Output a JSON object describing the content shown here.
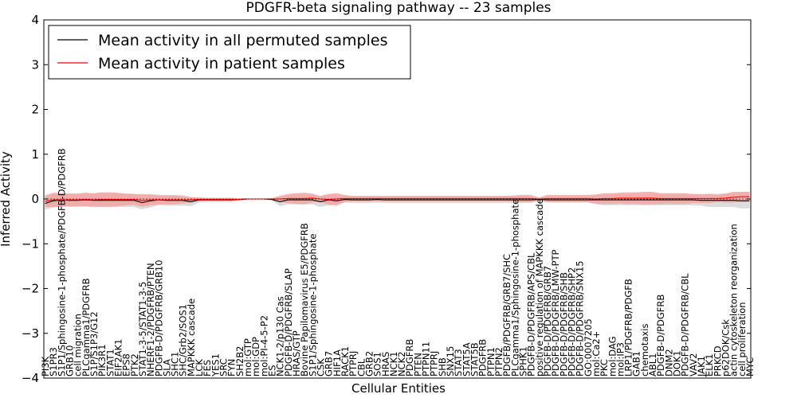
{
  "chart_data": {
    "type": "line",
    "title": "PDGFR-beta signaling pathway -- 23 samples",
    "xlabel": "Cellular Entities",
    "ylabel": "Inferred Activity",
    "ylim": [
      -4,
      4
    ],
    "yticks": [
      -4,
      -3,
      -2,
      -1,
      0,
      1,
      2,
      3,
      4
    ],
    "grid": false,
    "legend_position": "top-left",
    "categories": [
      "PI3K",
      "S1PR3",
      "S1P1/Sphingosine-1-phosphate/PDGFB-D/PDGFRB",
      "GRB10",
      "cell migration",
      "PLCgamma1/PDGFRB",
      "S1P/S1P3/G12",
      "PIK3R1",
      "STAT1",
      "EIF2AK1",
      "EPS8",
      "PTK2",
      "STAT1-3-5/STAT1-3-5",
      "NHERF1-2/PDGFRB/PTEN",
      "PDGFB-D/PDGFRB/GRB10",
      "SLA",
      "SHC1",
      "SHC/Grb2/SOS1",
      "MAPKKK cascade",
      "LCK",
      "FES",
      "YES1",
      "SRC",
      "FYN",
      "SH2B2",
      "mol:GTP",
      "mol:GDP",
      "mol:PI-4-5-P2",
      "ES",
      "NCK1-2/p130 Cas",
      "PDGFB-D/PDGFRB/SLAP",
      "HRAS/GTP",
      "Bovine Papilomavirus E5/PDGFRB",
      "S1P1/Sphingosine-1-phosphate",
      "CSK",
      "GRB7",
      "HIF1A",
      "RACK1",
      "PTPRJ",
      "CBL",
      "GRB2",
      "SOS1",
      "HRAS",
      "NCK1",
      "NCK2",
      "PDGFRB",
      "PTEN",
      "PTPN11",
      "PTPRJ",
      "SHB",
      "SNX15",
      "STAT3",
      "STAT5A",
      "STAT5B",
      "PDGFRB",
      "PTPN1",
      "PTPN2",
      "PDGFB/PDGFRB/GRB7/SHC",
      "PLCgamma1/Sphingosine-1-phosphate",
      "SPHK1",
      "PDGFB-D/PDGFRB/APS/CBL",
      "positive regulation of MAPKKK cascade",
      "PDGFB-D/PDGFRB/GRB7",
      "PDGFB-D/PDGFRB/LMW-PTP",
      "PDGFB-D/PDGFRB/SHB",
      "PDGFB-D/PDGFRB/SHP2",
      "PDGFB-D/PDGFRB/SNX15",
      "GO:0007205",
      "mol:Ca2+",
      "PKC",
      "mol:DAG",
      "mol:IP3",
      "LRP1/PDGFRB/PDGFB",
      "GAB1",
      "chemotaxis",
      "ABL1",
      "PDGFB-D/PDGFRB",
      "DNM2",
      "DOK1",
      "PDGFB-D/PDGFRB/CBL",
      "VAV2",
      "JAK1",
      "ELK1",
      "PRKCD",
      "p62DOK/Csk",
      "actin cytoskeleton reorganization",
      "cell proliferation",
      "MYC"
    ],
    "series": [
      {
        "name": "Mean activity in all permuted samples",
        "color": "#000000",
        "band_color": "#d8d8d8",
        "values": [
          -0.1,
          -0.04,
          -0.02,
          -0.03,
          -0.03,
          -0.02,
          -0.03,
          -0.03,
          -0.03,
          -0.03,
          -0.03,
          -0.03,
          -0.08,
          -0.04,
          -0.02,
          -0.03,
          -0.03,
          -0.03,
          -0.06,
          -0.02,
          -0.02,
          -0.02,
          -0.02,
          -0.02,
          -0.01,
          0.0,
          0.0,
          0.0,
          -0.01,
          -0.06,
          -0.02,
          -0.02,
          -0.02,
          -0.02,
          -0.06,
          -0.02,
          -0.04,
          -0.01,
          -0.02,
          -0.02,
          -0.02,
          -0.01,
          -0.02,
          -0.02,
          -0.02,
          -0.02,
          -0.02,
          -0.02,
          -0.02,
          -0.02,
          -0.02,
          -0.02,
          -0.02,
          -0.02,
          -0.02,
          -0.02,
          -0.02,
          -0.02,
          -0.02,
          -0.02,
          -0.02,
          -0.01,
          -0.02,
          -0.02,
          -0.02,
          -0.02,
          -0.02,
          -0.02,
          -0.02,
          -0.02,
          -0.02,
          -0.02,
          -0.02,
          -0.02,
          -0.02,
          -0.02,
          -0.02,
          -0.02,
          -0.02,
          -0.02,
          -0.02,
          -0.03,
          -0.03,
          -0.03,
          -0.03,
          -0.03,
          -0.04,
          -0.04
        ],
        "band": [
          0.13,
          0.15,
          0.15,
          0.15,
          0.15,
          0.15,
          0.15,
          0.15,
          0.15,
          0.15,
          0.15,
          0.15,
          0.15,
          0.15,
          0.12,
          0.12,
          0.12,
          0.12,
          0.1,
          0.06,
          0.05,
          0.05,
          0.05,
          0.05,
          0.03,
          0.01,
          0.01,
          0.01,
          0.02,
          0.1,
          0.1,
          0.1,
          0.1,
          0.1,
          0.12,
          0.12,
          0.12,
          0.07,
          0.07,
          0.07,
          0.07,
          0.07,
          0.07,
          0.07,
          0.07,
          0.07,
          0.07,
          0.07,
          0.07,
          0.07,
          0.07,
          0.07,
          0.07,
          0.07,
          0.07,
          0.07,
          0.07,
          0.07,
          0.07,
          0.07,
          0.07,
          0.03,
          0.06,
          0.06,
          0.06,
          0.06,
          0.06,
          0.06,
          0.1,
          0.12,
          0.12,
          0.12,
          0.12,
          0.12,
          0.12,
          0.12,
          0.12,
          0.12,
          0.12,
          0.12,
          0.12,
          0.12,
          0.15,
          0.15,
          0.15,
          0.15,
          0.17,
          0.17
        ]
      },
      {
        "name": "Mean activity in patient samples",
        "color": "#ff0000",
        "band_color": "#f4a3a3",
        "values": [
          -0.05,
          -0.02,
          -0.02,
          -0.02,
          -0.02,
          -0.01,
          -0.02,
          -0.01,
          -0.01,
          -0.01,
          -0.01,
          -0.01,
          -0.03,
          -0.02,
          -0.02,
          -0.02,
          -0.02,
          -0.02,
          -0.02,
          -0.01,
          -0.01,
          -0.01,
          -0.01,
          -0.01,
          -0.01,
          0.0,
          0.0,
          0.0,
          0.0,
          0.0,
          0.01,
          0.01,
          0.01,
          0.02,
          0.0,
          -0.01,
          0.0,
          0.01,
          0.01,
          0.01,
          0.01,
          0.01,
          0.01,
          0.01,
          0.01,
          0.01,
          0.01,
          0.01,
          0.01,
          0.01,
          0.01,
          0.01,
          0.01,
          0.01,
          0.01,
          0.01,
          0.01,
          0.01,
          0.01,
          0.01,
          0.01,
          0.0,
          0.01,
          0.01,
          0.01,
          0.01,
          0.01,
          0.01,
          0.0,
          0.01,
          0.01,
          0.02,
          0.02,
          0.02,
          0.02,
          0.02,
          0.01,
          0.01,
          0.01,
          0.01,
          0.01,
          0.01,
          0.01,
          0.01,
          0.02,
          0.04,
          0.05,
          0.05
        ],
        "band": [
          0.13,
          0.16,
          0.15,
          0.14,
          0.14,
          0.15,
          0.15,
          0.16,
          0.16,
          0.15,
          0.13,
          0.12,
          0.14,
          0.12,
          0.1,
          0.1,
          0.1,
          0.08,
          0.06,
          0.04,
          0.03,
          0.03,
          0.03,
          0.03,
          0.02,
          0.01,
          0.01,
          0.01,
          0.02,
          0.07,
          0.1,
          0.12,
          0.13,
          0.1,
          0.07,
          0.12,
          0.13,
          0.08,
          0.06,
          0.06,
          0.06,
          0.06,
          0.06,
          0.06,
          0.06,
          0.06,
          0.06,
          0.06,
          0.06,
          0.06,
          0.06,
          0.06,
          0.06,
          0.06,
          0.06,
          0.06,
          0.06,
          0.06,
          0.07,
          0.08,
          0.08,
          0.03,
          0.08,
          0.08,
          0.08,
          0.08,
          0.08,
          0.08,
          0.1,
          0.12,
          0.12,
          0.12,
          0.13,
          0.13,
          0.14,
          0.14,
          0.12,
          0.12,
          0.12,
          0.12,
          0.1,
          0.1,
          0.1,
          0.08,
          0.1,
          0.12,
          0.11,
          0.11
        ]
      }
    ]
  }
}
